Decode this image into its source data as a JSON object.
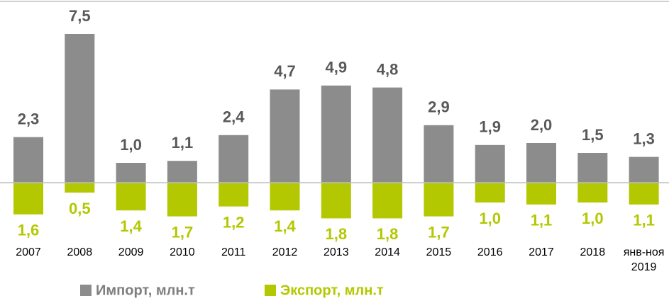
{
  "chart_data": {
    "type": "diverging_bar",
    "categories": [
      "2007",
      "2008",
      "2009",
      "2010",
      "2011",
      "2012",
      "2013",
      "2014",
      "2015",
      "2016",
      "2017",
      "2018",
      "янв-ноя 2019"
    ],
    "series": [
      {
        "name": "Импорт, млн.т",
        "color": "#8c8c8c",
        "values": [
          2.3,
          7.5,
          1.0,
          1.1,
          2.4,
          4.7,
          4.9,
          4.8,
          2.9,
          1.9,
          2.0,
          1.5,
          1.3
        ],
        "value_labels": [
          "2,3",
          "7,5",
          "1,0",
          "1,1",
          "2,4",
          "4,7",
          "4,9",
          "4,8",
          "2,9",
          "1,9",
          "2,0",
          "1,5",
          "1,3"
        ]
      },
      {
        "name": "Экспорт, млн.т",
        "color": "#b3c800",
        "values": [
          1.6,
          0.5,
          1.4,
          1.7,
          1.2,
          1.4,
          1.8,
          1.8,
          1.7,
          1.0,
          1.1,
          1.0,
          1.1
        ],
        "value_labels": [
          "1,6",
          "0,5",
          "1,4",
          "1,7",
          "1,2",
          "1,4",
          "1,8",
          "1,8",
          "1,7",
          "1,0",
          "1,1",
          "1,0",
          "1,1"
        ]
      }
    ]
  }
}
